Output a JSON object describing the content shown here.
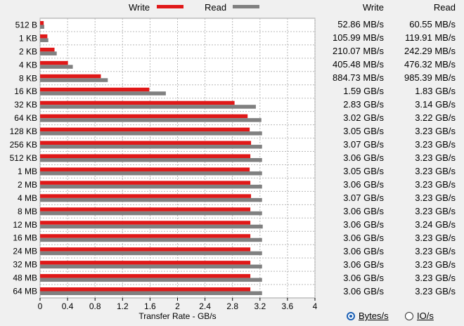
{
  "legend": {
    "write": "Write",
    "read": "Read"
  },
  "colors": {
    "write": "#e01818",
    "read": "#808080",
    "background": "#f0f0f0",
    "plot": "#ffffff"
  },
  "table": {
    "header_write": "Write",
    "header_read": "Read",
    "rows": [
      {
        "write": "52.86 MB/s",
        "read": "60.55 MB/s"
      },
      {
        "write": "105.99 MB/s",
        "read": "119.91 MB/s"
      },
      {
        "write": "210.07 MB/s",
        "read": "242.29 MB/s"
      },
      {
        "write": "405.48 MB/s",
        "read": "476.32 MB/s"
      },
      {
        "write": "884.73 MB/s",
        "read": "985.39 MB/s"
      },
      {
        "write": "1.59 GB/s",
        "read": "1.83 GB/s"
      },
      {
        "write": "2.83 GB/s",
        "read": "3.14 GB/s"
      },
      {
        "write": "3.02 GB/s",
        "read": "3.22 GB/s"
      },
      {
        "write": "3.05 GB/s",
        "read": "3.23 GB/s"
      },
      {
        "write": "3.07 GB/s",
        "read": "3.23 GB/s"
      },
      {
        "write": "3.06 GB/s",
        "read": "3.23 GB/s"
      },
      {
        "write": "3.05 GB/s",
        "read": "3.23 GB/s"
      },
      {
        "write": "3.06 GB/s",
        "read": "3.23 GB/s"
      },
      {
        "write": "3.07 GB/s",
        "read": "3.23 GB/s"
      },
      {
        "write": "3.06 GB/s",
        "read": "3.23 GB/s"
      },
      {
        "write": "3.06 GB/s",
        "read": "3.24 GB/s"
      },
      {
        "write": "3.06 GB/s",
        "read": "3.23 GB/s"
      },
      {
        "write": "3.06 GB/s",
        "read": "3.23 GB/s"
      },
      {
        "write": "3.06 GB/s",
        "read": "3.23 GB/s"
      },
      {
        "write": "3.06 GB/s",
        "read": "3.23 GB/s"
      },
      {
        "write": "3.06 GB/s",
        "read": "3.23 GB/s"
      }
    ]
  },
  "units": {
    "bytes_label": "Bytes/s",
    "io_label": "IO/s",
    "selected": "bytes"
  },
  "chart_data": {
    "type": "bar",
    "orientation": "horizontal",
    "categories": [
      "512 B",
      "1 KB",
      "2 KB",
      "4 KB",
      "8 KB",
      "16 KB",
      "32 KB",
      "64 KB",
      "128 KB",
      "256 KB",
      "512 KB",
      "1 MB",
      "2 MB",
      "4 MB",
      "8 MB",
      "12 MB",
      "16 MB",
      "24 MB",
      "32 MB",
      "48 MB",
      "64 MB"
    ],
    "series": [
      {
        "name": "Write",
        "values": [
          0.05286,
          0.10599,
          0.21007,
          0.40548,
          0.88473,
          1.59,
          2.83,
          3.02,
          3.05,
          3.07,
          3.06,
          3.05,
          3.06,
          3.07,
          3.06,
          3.06,
          3.06,
          3.06,
          3.06,
          3.06,
          3.06
        ]
      },
      {
        "name": "Read",
        "values": [
          0.06055,
          0.11991,
          0.24229,
          0.47632,
          0.98539,
          1.83,
          3.14,
          3.22,
          3.23,
          3.23,
          3.23,
          3.23,
          3.23,
          3.23,
          3.23,
          3.24,
          3.23,
          3.23,
          3.23,
          3.23,
          3.23
        ]
      }
    ],
    "xlabel": "Transfer Rate - GB/s",
    "xlim": [
      0,
      4
    ],
    "xticks": [
      "0",
      "0.4",
      "0.8",
      "1.2",
      "1.6",
      "2",
      "2.4",
      "2.8",
      "3.2",
      "3.6",
      "4"
    ],
    "grid": true,
    "legend": "top"
  }
}
